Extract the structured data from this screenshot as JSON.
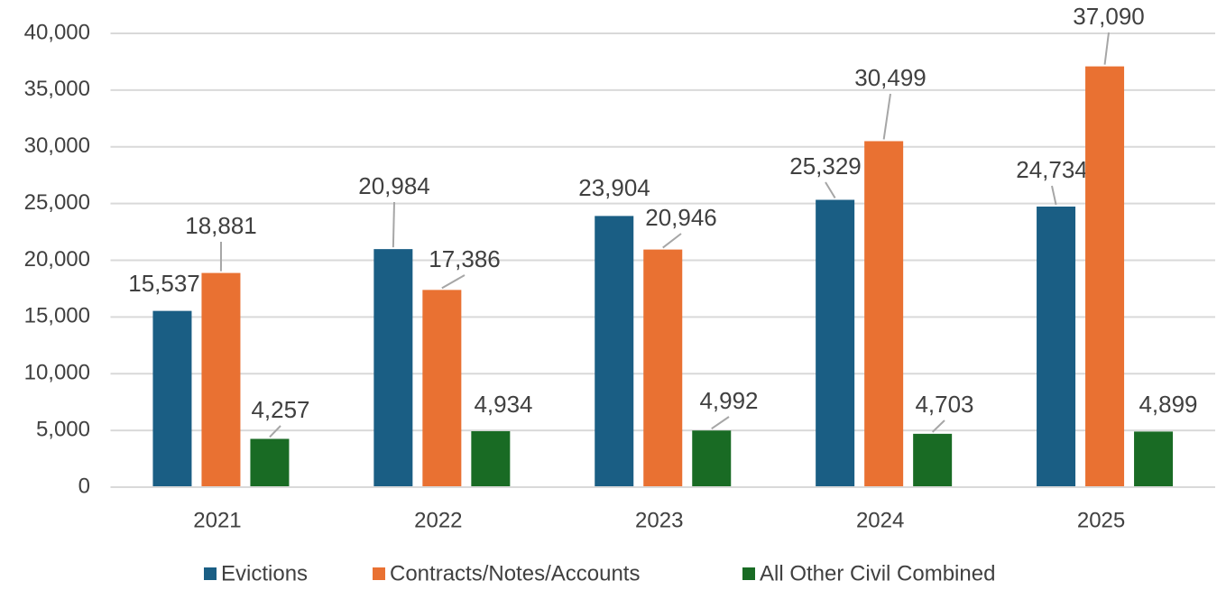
{
  "chart_data": {
    "type": "bar",
    "categories": [
      "2021",
      "2022",
      "2023",
      "2024",
      "2025"
    ],
    "series": [
      {
        "name": "Evictions",
        "color": "#1a5e84",
        "values": [
          15537,
          20984,
          23904,
          25329,
          24734
        ],
        "value_labels": [
          "15,537",
          "20,984",
          "23,904",
          "25,329",
          "24,734"
        ]
      },
      {
        "name": "Contracts/Notes/Accounts",
        "color": "#e97132",
        "values": [
          18881,
          17386,
          20946,
          30499,
          37090
        ],
        "value_labels": [
          "18,881",
          "17,386",
          "20,946",
          "30,499",
          "37,090"
        ]
      },
      {
        "name": "All Other Civil Combined",
        "color": "#196b24",
        "values": [
          4257,
          4934,
          4992,
          4703,
          4899
        ],
        "value_labels": [
          "4,257",
          "4,934",
          "4,992",
          "4,703",
          "4,899"
        ]
      }
    ],
    "ylim": [
      0,
      40000
    ],
    "yticks": [
      0,
      {
        "value": 5000,
        "label": "5,000"
      },
      {
        "value": 10000,
        "label": "10,000"
      },
      {
        "value": 15000,
        "label": "15,000"
      },
      {
        "value": 20000,
        "label": "20,000"
      },
      {
        "value": 25000,
        "label": "25,000"
      },
      {
        "value": 30000,
        "label": "30,000"
      },
      {
        "value": 35000,
        "label": "35,000"
      },
      {
        "value": 40000,
        "label": "40,000"
      }
    ],
    "grid": true,
    "legend": "bottom"
  }
}
